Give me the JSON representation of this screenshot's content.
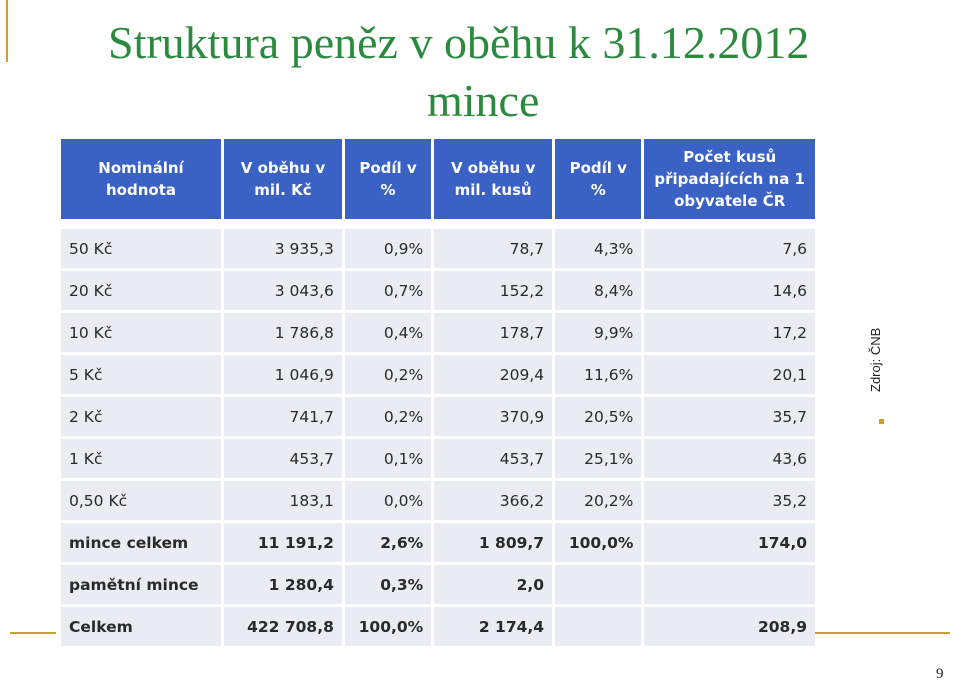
{
  "title": {
    "line1": "Struktura peněz v oběhu k 31.12.2012",
    "line2": "mince"
  },
  "table": {
    "headers": [
      "Nominální hodnota",
      "V oběhu v mil. Kč",
      "Podíl v %",
      "V oběhu v mil. kusů",
      "Podíl v %",
      "Počet kusů připadajících na 1 obyvatele ČR"
    ],
    "rows": [
      [
        "50 Kč",
        "3 935,3",
        "0,9%",
        "78,7",
        "4,3%",
        "7,6"
      ],
      [
        "20 Kč",
        "3 043,6",
        "0,7%",
        "152,2",
        "8,4%",
        "14,6"
      ],
      [
        "10 Kč",
        "1 786,8",
        "0,4%",
        "178,7",
        "9,9%",
        "17,2"
      ],
      [
        "5 Kč",
        "1 046,9",
        "0,2%",
        "209,4",
        "11,6%",
        "20,1"
      ],
      [
        "2 Kč",
        "741,7",
        "0,2%",
        "370,9",
        "20,5%",
        "35,7"
      ],
      [
        "1 Kč",
        "453,7",
        "0,1%",
        "453,7",
        "25,1%",
        "43,6"
      ],
      [
        "0,50 Kč",
        "183,1",
        "0,0%",
        "366,2",
        "20,2%",
        "35,2"
      ],
      [
        "mince celkem",
        "11 191,2",
        "2,6%",
        "1 809,7",
        "100,0%",
        "174,0"
      ],
      [
        "pamětní mince",
        "1 280,4",
        "0,3%",
        "2,0",
        "",
        ""
      ],
      [
        "Celkem",
        "422 708,8",
        "100,0%",
        "2 174,4",
        "",
        "208,9"
      ]
    ]
  },
  "source": "Zdroj: ČNB",
  "page_number": "9",
  "colors": {
    "title": "#2b8a3e",
    "header_bg": "#3a61c4",
    "cell_bg": "#e9ecf3",
    "accent": "#c9a227"
  }
}
